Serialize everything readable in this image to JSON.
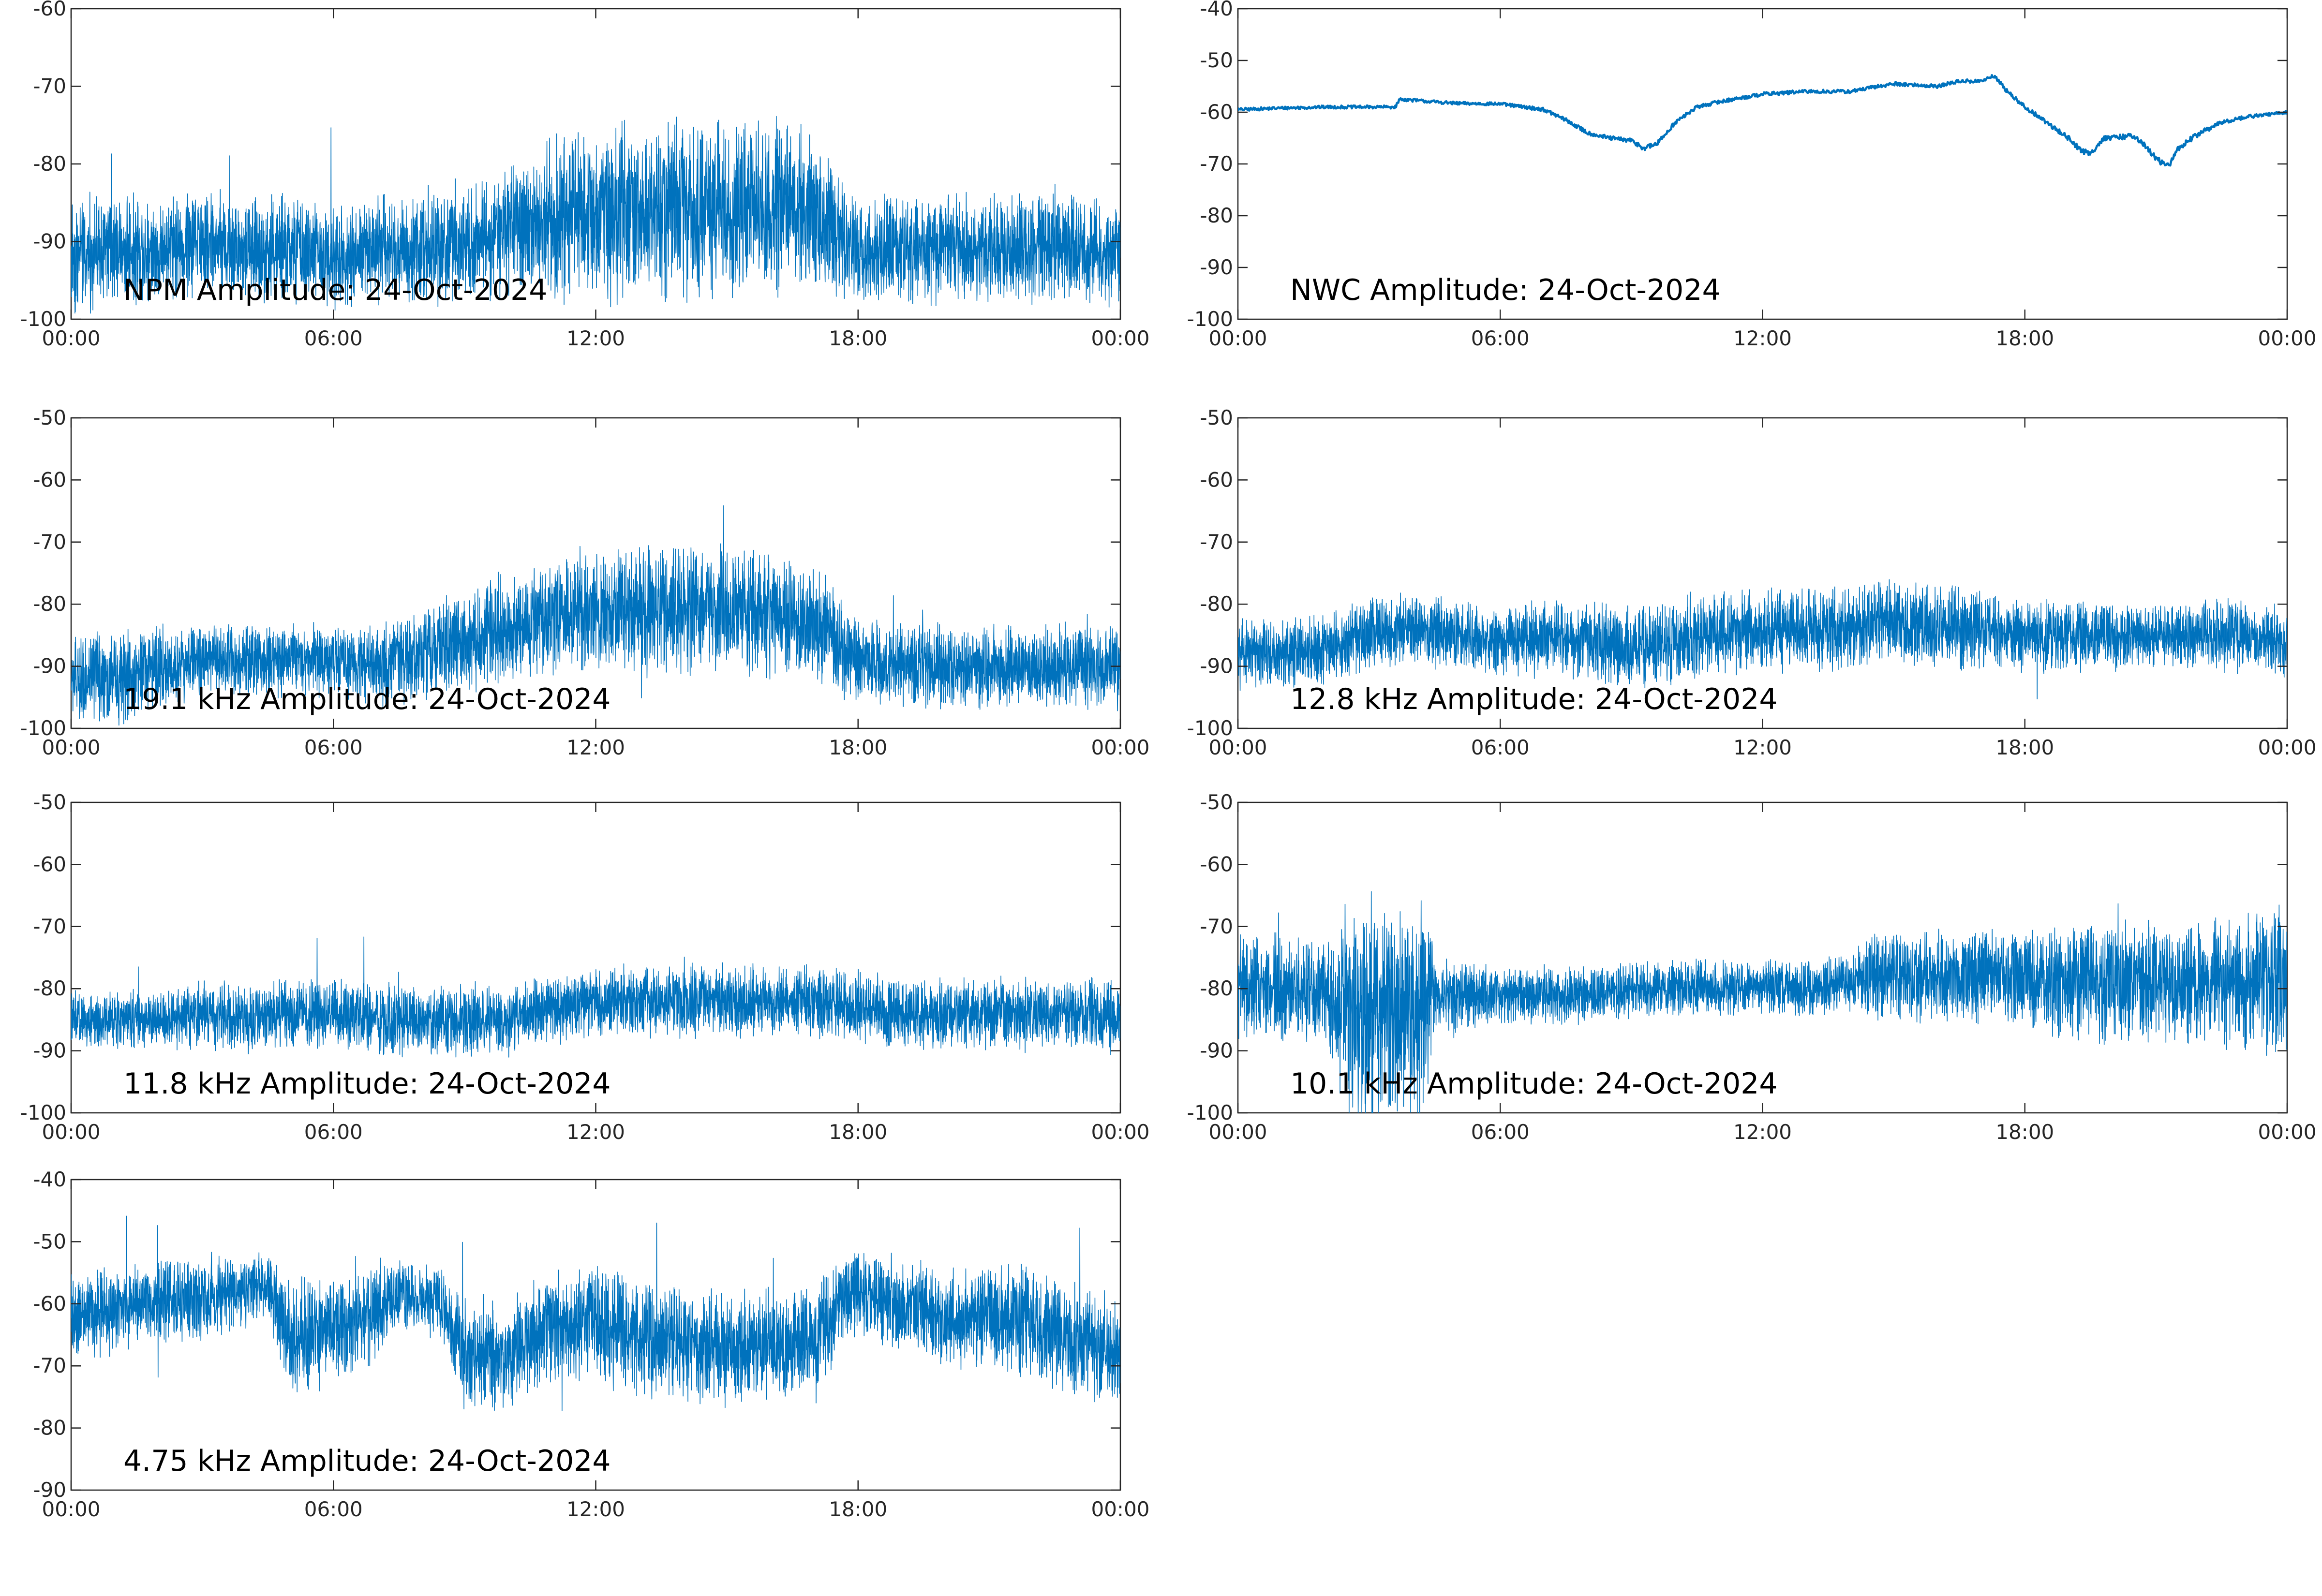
{
  "colors": {
    "trace": "#0072bd",
    "axes": "#262626",
    "background": "#ffffff"
  },
  "chart_data": [
    {
      "type": "line",
      "title": "NPM Amplitude: 24-Oct-2024",
      "x_ticks": [
        "00:00",
        "06:00",
        "12:00",
        "18:00",
        "00:00"
      ],
      "xlim_hours": [
        0,
        24
      ],
      "ylim": [
        -100,
        -60
      ],
      "y_ticks": [
        -100,
        -90,
        -80,
        -70,
        -60
      ],
      "style": "noisy",
      "series": [
        {
          "x": [
            0,
            1,
            2,
            3,
            4,
            5,
            6,
            7,
            8,
            9,
            10,
            10.5,
            11,
            12,
            13,
            14,
            15,
            16,
            17,
            17.5,
            18,
            19,
            20,
            21,
            22,
            23,
            24
          ],
          "y": [
            -92,
            -91,
            -91,
            -90,
            -91,
            -91,
            -92,
            -91,
            -91,
            -90,
            -89,
            -88,
            -87,
            -86,
            -86,
            -86,
            -86,
            -86,
            -86,
            -89,
            -91,
            -91,
            -91,
            -91,
            -91,
            -91,
            -92
          ],
          "noise": [
            7,
            6,
            6,
            6,
            6,
            6,
            6,
            6,
            6,
            7,
            7,
            8,
            9,
            10,
            10,
            10,
            10,
            10,
            9,
            7,
            6,
            6,
            6,
            6,
            6,
            6,
            6
          ]
        }
      ]
    },
    {
      "type": "line",
      "title": "NWC Amplitude: 24-Oct-2024",
      "x_ticks": [
        "00:00",
        "06:00",
        "12:00",
        "18:00",
        "00:00"
      ],
      "xlim_hours": [
        0,
        24
      ],
      "ylim": [
        -100,
        -40
      ],
      "y_ticks": [
        -100,
        -90,
        -80,
        -70,
        -60,
        -50,
        -40
      ],
      "style": "smooth",
      "series": [
        {
          "x": [
            0,
            1,
            2,
            3,
            3.6,
            3.7,
            4.5,
            5,
            6,
            7,
            7.5,
            8,
            8.5,
            9,
            9.3,
            9.6,
            10,
            10.5,
            11,
            12,
            13,
            14,
            15,
            16,
            16.5,
            17,
            17.3,
            17.6,
            18,
            18.5,
            19,
            19.3,
            19.5,
            19.8,
            20,
            20.5,
            20.8,
            21,
            21.3,
            21.5,
            22,
            22.5,
            23,
            24
          ],
          "y": [
            -59.5,
            -59.2,
            -59,
            -59,
            -59,
            -57.5,
            -58,
            -58.3,
            -58.4,
            -59.5,
            -61.5,
            -64,
            -65,
            -65.5,
            -67,
            -66,
            -62,
            -59,
            -58,
            -56.5,
            -56,
            -56,
            -54.5,
            -55,
            -54,
            -54,
            -53,
            -56,
            -59,
            -62,
            -65,
            -67.5,
            -68,
            -65,
            -65,
            -64.5,
            -67,
            -69,
            -70.5,
            -67,
            -64,
            -62,
            -61,
            -60
          ],
          "noise": [
            0.6,
            0.6,
            0.6,
            0.6,
            0.6,
            0.6,
            0.6,
            0.6,
            0.6,
            0.7,
            0.8,
            0.8,
            0.8,
            0.9,
            1.0,
            0.9,
            0.8,
            0.7,
            0.7,
            0.7,
            0.7,
            0.7,
            0.7,
            0.7,
            0.7,
            0.7,
            0.7,
            0.8,
            0.8,
            0.9,
            1.0,
            1.1,
            1.1,
            1.0,
            1.0,
            1.0,
            1.1,
            1.2,
            1.2,
            1.1,
            1.0,
            0.8,
            0.7,
            0.6
          ]
        }
      ]
    },
    {
      "type": "line",
      "title": "19.1 kHz Amplitude: 24-Oct-2024",
      "x_ticks": [
        "00:00",
        "06:00",
        "12:00",
        "18:00",
        "00:00"
      ],
      "xlim_hours": [
        0,
        24
      ],
      "ylim": [
        -100,
        -50
      ],
      "y_ticks": [
        -100,
        -90,
        -80,
        -70,
        -60,
        -50
      ],
      "style": "noisy",
      "series": [
        {
          "x": [
            0,
            1,
            2,
            3,
            4,
            5,
            6,
            7,
            8,
            9,
            10,
            11,
            12,
            13,
            14,
            15,
            16,
            17,
            17.5,
            18,
            19,
            20,
            21,
            22,
            23,
            24
          ],
          "y": [
            -92,
            -92,
            -90,
            -89,
            -89,
            -89,
            -89,
            -90,
            -88,
            -86,
            -84,
            -82,
            -81,
            -81,
            -81,
            -81,
            -82,
            -83,
            -86,
            -89,
            -90,
            -90,
            -90,
            -90,
            -90,
            -91
          ],
          "noise": [
            6,
            7,
            6,
            5,
            5,
            5,
            5,
            6,
            7,
            7,
            8,
            8,
            9,
            9,
            9,
            9,
            9,
            8,
            7,
            6,
            6,
            6,
            6,
            6,
            6,
            6
          ]
        }
      ]
    },
    {
      "type": "line",
      "title": "12.8 kHz Amplitude: 24-Oct-2024",
      "x_ticks": [
        "00:00",
        "06:00",
        "12:00",
        "18:00",
        "00:00"
      ],
      "xlim_hours": [
        0,
        24
      ],
      "ylim": [
        -100,
        -50
      ],
      "y_ticks": [
        -100,
        -90,
        -80,
        -70,
        -60,
        -50
      ],
      "style": "noisy",
      "series": [
        {
          "x": [
            0,
            1,
            2,
            3,
            4,
            5,
            6,
            7,
            8,
            9,
            10,
            11,
            12,
            13,
            14,
            15,
            16,
            17,
            18,
            19,
            20,
            21,
            22,
            23,
            24
          ],
          "y": [
            -88,
            -88,
            -87,
            -85,
            -84,
            -85,
            -86,
            -85,
            -86,
            -87,
            -86,
            -85,
            -84,
            -84,
            -84,
            -83,
            -84,
            -84,
            -85,
            -85,
            -85,
            -85,
            -85,
            -85,
            -86
          ],
          "noise": [
            5,
            5,
            5,
            5,
            5,
            5,
            5,
            5,
            6,
            6,
            6,
            6,
            6,
            6,
            6,
            6,
            6,
            6,
            5,
            5,
            5,
            5,
            5,
            5,
            5
          ]
        }
      ]
    },
    {
      "type": "line",
      "title": "11.8 kHz Amplitude: 24-Oct-2024",
      "x_ticks": [
        "00:00",
        "06:00",
        "12:00",
        "18:00",
        "00:00"
      ],
      "xlim_hours": [
        0,
        24
      ],
      "ylim": [
        -100,
        -50
      ],
      "y_ticks": [
        -100,
        -90,
        -80,
        -70,
        -60,
        -50
      ],
      "style": "noisy",
      "series": [
        {
          "x": [
            0,
            1,
            2,
            3,
            4,
            5,
            6,
            7,
            8,
            9,
            10,
            11,
            12,
            13,
            14,
            15,
            16,
            17,
            18,
            19,
            20,
            21,
            22,
            23,
            24
          ],
          "y": [
            -85,
            -85,
            -85,
            -84,
            -85,
            -84,
            -84,
            -85,
            -85,
            -85,
            -85,
            -83,
            -82,
            -82,
            -82,
            -82,
            -82,
            -82,
            -83,
            -84,
            -84,
            -84,
            -84,
            -84,
            -85
          ],
          "noise": [
            4,
            4,
            4,
            5,
            5,
            5,
            5,
            5,
            5,
            5,
            5,
            5,
            5,
            5,
            5,
            5,
            5,
            5,
            5,
            5,
            5,
            5,
            5,
            5,
            5
          ]
        }
      ]
    },
    {
      "type": "line",
      "title": "10.1 kHz Amplitude: 24-Oct-2024",
      "x_ticks": [
        "00:00",
        "06:00",
        "12:00",
        "18:00",
        "00:00"
      ],
      "xlim_hours": [
        0,
        24
      ],
      "ylim": [
        -100,
        -50
      ],
      "y_ticks": [
        -100,
        -90,
        -80,
        -70,
        -60,
        -50
      ],
      "style": "noisy",
      "series": [
        {
          "x": [
            0,
            1,
            2,
            2.5,
            3,
            3.5,
            4,
            4.3,
            4.5,
            5,
            6,
            7,
            8,
            9,
            10,
            11,
            12,
            13,
            14,
            14.5,
            15,
            16,
            17,
            18,
            19,
            20,
            21,
            22,
            23,
            24
          ],
          "y": [
            -80,
            -80,
            -80,
            -84,
            -84,
            -84,
            -84,
            -84,
            -81,
            -81,
            -81,
            -81,
            -81,
            -80,
            -80,
            -80,
            -80,
            -80,
            -79,
            -78,
            -78,
            -78,
            -78,
            -78,
            -79,
            -79,
            -79,
            -79,
            -79,
            -79
          ],
          "noise": [
            7,
            8,
            7,
            16,
            16,
            16,
            16,
            16,
            5,
            5,
            4,
            4,
            4,
            4,
            4,
            4,
            4,
            4,
            4,
            6,
            7,
            7,
            7,
            7,
            8,
            9,
            9,
            9,
            10,
            11
          ]
        }
      ]
    },
    {
      "type": "line",
      "title": "4.75 kHz Amplitude: 24-Oct-2024",
      "x_ticks": [
        "00:00",
        "06:00",
        "12:00",
        "18:00",
        "00:00"
      ],
      "xlim_hours": [
        0,
        24
      ],
      "ylim": [
        -90,
        -40
      ],
      "y_ticks": [
        -90,
        -80,
        -70,
        -60,
        -50,
        -40
      ],
      "style": "noisy",
      "series": [
        {
          "x": [
            0,
            1,
            2,
            3,
            4,
            4.5,
            5,
            6,
            7,
            7.5,
            8,
            8.5,
            9,
            10,
            11,
            12,
            13,
            14,
            15,
            16,
            17,
            17.5,
            18,
            19,
            20,
            21,
            22,
            23,
            24
          ],
          "y": [
            -62,
            -61,
            -60,
            -59,
            -58,
            -57,
            -65,
            -65,
            -61,
            -59,
            -59,
            -60,
            -68,
            -68,
            -64,
            -63,
            -66,
            -66,
            -67,
            -66,
            -67,
            -60,
            -58,
            -60,
            -62,
            -62,
            -63,
            -66,
            -68
          ],
          "noise": [
            6,
            6,
            6,
            6,
            5,
            5,
            8,
            8,
            7,
            5,
            5,
            5,
            8,
            8,
            8,
            8,
            8,
            8,
            8,
            8,
            8,
            7,
            6,
            7,
            7,
            7,
            8,
            8,
            8
          ]
        }
      ]
    }
  ]
}
